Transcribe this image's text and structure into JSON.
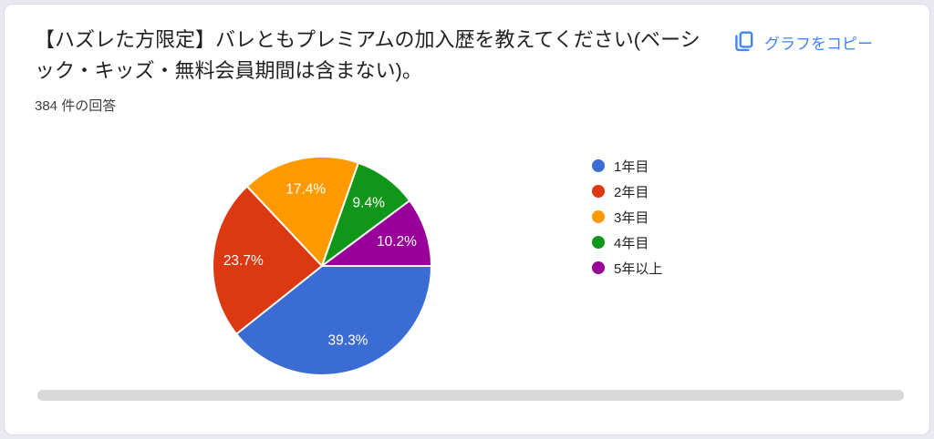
{
  "card": {
    "title": "【ハズレた方限定】バレともプレミアムの加入歴を教えてください(ベーシック・キッズ・無料会員期間は含まない)。",
    "responses_count": "384 件の回答",
    "copy_button_label": "グラフをコピー",
    "accent_color": "#4285f4"
  },
  "chart_data": {
    "type": "pie",
    "title": "【ハズレた方限定】バレともプレミアムの加入歴を教えてください(ベーシック・キッズ・無料会員期間は含まない)。",
    "subtitle": "384 件の回答",
    "total_responses": 384,
    "labels": [
      "1年目",
      "2年目",
      "3年目",
      "4年目",
      "5年以上"
    ],
    "values": [
      39.3,
      23.7,
      17.4,
      9.4,
      10.2
    ],
    "display_labels": [
      "39.3%",
      "23.7%",
      "17.4%",
      "9.4%",
      "10.2%"
    ],
    "colors": [
      "#3b6cd4",
      "#dc3912",
      "#ff9900",
      "#109618",
      "#990099"
    ],
    "slice_label_color": "#ffffff",
    "slice_stroke_color": "#ffffff",
    "start_angle_deg": 0,
    "direction": "clockwise",
    "legend_position": "right"
  }
}
